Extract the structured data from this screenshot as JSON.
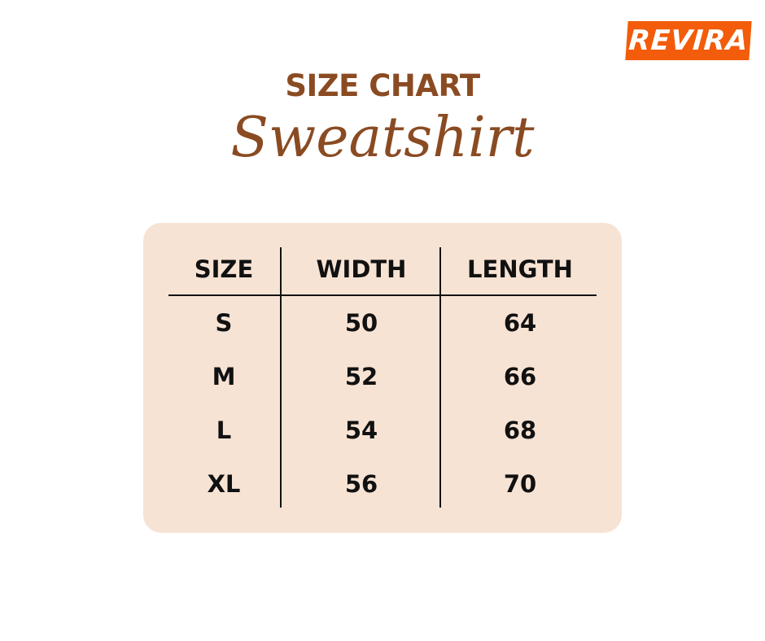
{
  "brand": {
    "logo_text": "REVIRA",
    "color": "#f25c0a"
  },
  "header": {
    "title": "SIZE CHART",
    "subtitle": "Sweatshirt",
    "color": "#8a4b22"
  },
  "table": {
    "background": "#f7e3d4",
    "columns": [
      "SIZE",
      "WIDTH",
      "LENGTH"
    ],
    "rows": [
      [
        "S",
        "50",
        "64"
      ],
      [
        "M",
        "52",
        "66"
      ],
      [
        "L",
        "54",
        "68"
      ],
      [
        "XL",
        "56",
        "70"
      ]
    ]
  }
}
